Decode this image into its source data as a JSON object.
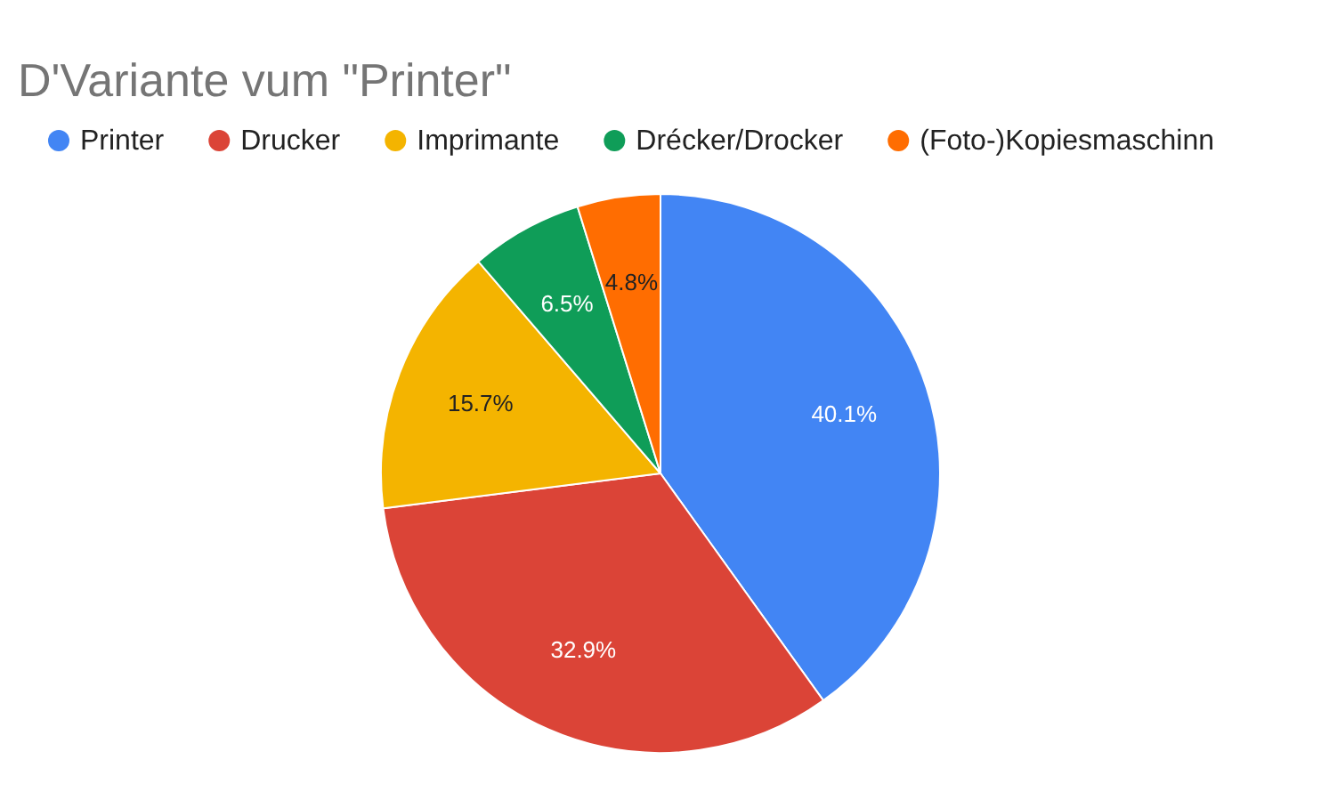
{
  "chart_data": {
    "type": "pie",
    "title": "D'Variante vum \"Printer\"",
    "categories": [
      "Printer",
      "Drucker",
      "Imprimante",
      "Drécker/Drocker",
      "(Foto-)Kopiesmaschinn"
    ],
    "values": [
      40.1,
      32.9,
      15.7,
      6.5,
      4.8
    ],
    "colors": [
      "#4285f4",
      "#db4437",
      "#f4b400",
      "#0f9d58",
      "#ff6d01"
    ],
    "value_labels": [
      "40.1%",
      "32.9%",
      "15.7%",
      "6.5%",
      "4.8%"
    ],
    "legend": "top"
  }
}
